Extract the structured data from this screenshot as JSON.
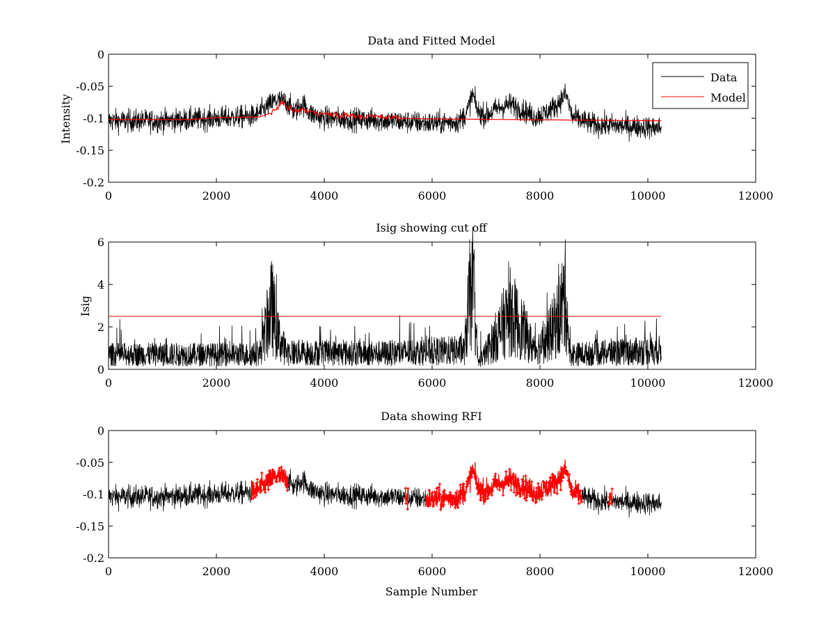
{
  "colors": {
    "data": "#000000",
    "model": "#ff0000",
    "cutoff": "#ff0000",
    "rfi": "#ff0000",
    "background": "#ffffff"
  },
  "chart_data": [
    {
      "type": "line",
      "title": "Data and Fitted Model",
      "xlabel": "",
      "ylabel": "Intensity",
      "xlim": [
        0,
        12000
      ],
      "ylim": [
        -0.2,
        0
      ],
      "x_ticks": [
        "0",
        "2000",
        "4000",
        "6000",
        "8000",
        "10000",
        "12000"
      ],
      "y_ticks": [
        "-0.2",
        "-0.15",
        "-0.1",
        "-0.05",
        "0"
      ],
      "legend": {
        "position": "top-right",
        "entries": [
          "Data",
          "Model"
        ]
      },
      "series": [
        {
          "name": "Data",
          "x_range": [
            0,
            10250
          ],
          "noise": 0.009,
          "trend": [
            [
              0,
              -0.104
            ],
            [
              1000,
              -0.104
            ],
            [
              2000,
              -0.1
            ],
            [
              2700,
              -0.097
            ],
            [
              2900,
              -0.085
            ],
            [
              3100,
              -0.072
            ],
            [
              3300,
              -0.075
            ],
            [
              3450,
              -0.09
            ],
            [
              3600,
              -0.077
            ],
            [
              3750,
              -0.093
            ],
            [
              4000,
              -0.1
            ],
            [
              5000,
              -0.103
            ],
            [
              6000,
              -0.108
            ],
            [
              6500,
              -0.105
            ],
            [
              6650,
              -0.09
            ],
            [
              6750,
              -0.062
            ],
            [
              6850,
              -0.09
            ],
            [
              7000,
              -0.096
            ],
            [
              7200,
              -0.085
            ],
            [
              7450,
              -0.078
            ],
            [
              7700,
              -0.088
            ],
            [
              7900,
              -0.098
            ],
            [
              8100,
              -0.092
            ],
            [
              8300,
              -0.08
            ],
            [
              8480,
              -0.062
            ],
            [
              8600,
              -0.098
            ],
            [
              9000,
              -0.11
            ],
            [
              10250,
              -0.115
            ]
          ]
        },
        {
          "name": "Model",
          "points": [
            [
              0,
              -0.102
            ],
            [
              1500,
              -0.102
            ],
            [
              2000,
              -0.099
            ],
            [
              2800,
              -0.098
            ],
            [
              3000,
              -0.092
            ],
            [
              3150,
              -0.083
            ],
            [
              3250,
              -0.072
            ],
            [
              3300,
              -0.082
            ],
            [
              3450,
              -0.09
            ],
            [
              3600,
              -0.087
            ],
            [
              4000,
              -0.094
            ],
            [
              4400,
              -0.095
            ],
            [
              5000,
              -0.098
            ],
            [
              5400,
              -0.1
            ],
            [
              6000,
              -0.101
            ],
            [
              10250,
              -0.104
            ]
          ]
        }
      ]
    },
    {
      "type": "line",
      "title": "Isig showing cut off",
      "xlabel": "",
      "ylabel": "Isig",
      "xlim": [
        0,
        12000
      ],
      "ylim": [
        0,
        6
      ],
      "x_ticks": [
        "0",
        "2000",
        "4000",
        "6000",
        "8000",
        "10000",
        "12000"
      ],
      "y_ticks": [
        "0",
        "2",
        "4",
        "6"
      ],
      "cutoff": 2.5,
      "series": [
        {
          "name": "Isig",
          "x_range": [
            0,
            10250
          ],
          "trend": [
            [
              0,
              0.7
            ],
            [
              2800,
              0.7
            ],
            [
              2950,
              2.2
            ],
            [
              3030,
              3.0
            ],
            [
              3150,
              1.5
            ],
            [
              3300,
              0.8
            ],
            [
              5000,
              0.75
            ],
            [
              6600,
              0.9
            ],
            [
              6700,
              3.5
            ],
            [
              6780,
              3.4
            ],
            [
              6850,
              0.3
            ],
            [
              7000,
              0.8
            ],
            [
              7200,
              1.6
            ],
            [
              7450,
              2.7
            ],
            [
              7700,
              1.8
            ],
            [
              7900,
              0.9
            ],
            [
              8100,
              1.3
            ],
            [
              8300,
              2.2
            ],
            [
              8480,
              3.5
            ],
            [
              8550,
              0.7
            ],
            [
              10250,
              0.9
            ]
          ]
        }
      ]
    },
    {
      "type": "line",
      "title": "Data showing RFI",
      "xlabel": "Sample Number",
      "ylabel": "",
      "xlim": [
        0,
        12000
      ],
      "ylim": [
        -0.2,
        0
      ],
      "x_ticks": [
        "0",
        "2000",
        "4000",
        "6000",
        "8000",
        "10000",
        "12000"
      ],
      "y_ticks": [
        "-0.2",
        "-0.15",
        "-0.1",
        "-0.05",
        "0"
      ],
      "series": [
        {
          "name": "Data",
          "x_range": [
            0,
            10250
          ]
        },
        {
          "name": "RFI",
          "x_ranges": [
            [
              2650,
              3330
            ],
            [
              5500,
              5560
            ],
            [
              5880,
              8780
            ],
            [
              9280,
              9340
            ]
          ]
        }
      ]
    }
  ]
}
